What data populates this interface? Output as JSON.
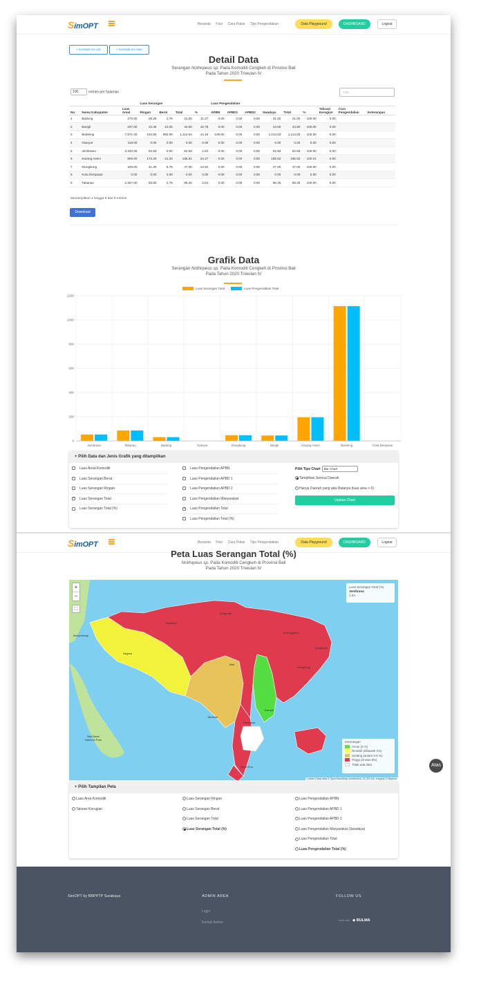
{
  "nav": {
    "logo_initial": "S",
    "logo_rest": "imOPT",
    "links": [
      "Beranda",
      "Fitur",
      "Cara Pakai",
      "Tips Pengendalian"
    ],
    "playground": "Data Playground",
    "dashboard": "DASHBOARD",
    "logout": "Logout"
  },
  "detail": {
    "back_list": "« Kembali Ke List",
    "back_isian": "« Kembali Ke Isian",
    "title": "Detail Data",
    "subtitle_pre": "Serangan ",
    "subtitle_pest": "Nothopeus sp.",
    "subtitle_post": " Pada Komoditi Cengkeh di Provinsi Bali",
    "subtitle_line2": "Pada Tahun 2020 Triwulan IV",
    "entries_value": "100",
    "entries_label": "entries per halaman",
    "search_placeholder": "Cari...",
    "group_serangan": "Luas Serangan",
    "group_pengendalian": "Luas Pengendalian",
    "headers": [
      "No.",
      "Nama Kabupaten",
      "Luas Areal",
      "Ringan",
      "Berat",
      "Total",
      "%",
      "APBN",
      "APBD1",
      "APBD2",
      "Swadaya",
      "Total",
      "%",
      "Taksasi Kerugian",
      "Cara Pengendalian",
      "Keterangan"
    ],
    "rows": [
      [
        "1",
        "Badung",
        "275.00",
        "28.25",
        "2.75",
        "31.00",
        "11.27",
        "0.00",
        "0.00",
        "0.00",
        "31.00",
        "31.00",
        "100.00",
        "0.00",
        "",
        ""
      ],
      [
        "2",
        "Bangli",
        "237.00",
        "34.45",
        "10.05",
        "44.50",
        "18.78",
        "0.00",
        "0.00",
        "0.00",
        "44.50",
        "44.50",
        "100.00",
        "0.00",
        "",
        ""
      ],
      [
        "3",
        "Buleleng",
        "7,871.00",
        "164.55",
        "950.09",
        "1,114.64",
        "14.16",
        "100.00",
        "0.00",
        "0.00",
        "1,014.63",
        "1,114.63",
        "100.00",
        "0.00",
        "",
        ""
      ],
      [
        "4",
        "Gianyar",
        "119.00",
        "0.00",
        "0.00",
        "0.00",
        "0.00",
        "0.00",
        "0.00",
        "0.00",
        "0.00",
        "0.00",
        "0.00",
        "0.00",
        "",
        ""
      ],
      [
        "5",
        "Jembrana",
        "3,420.00",
        "52.83",
        "0.00",
        "52.83",
        "1.54",
        "0.00",
        "0.00",
        "0.00",
        "52.83",
        "52.83",
        "100.00",
        "0.00",
        "",
        ""
      ],
      [
        "6",
        "Karang Asem",
        "806.00",
        "174.28",
        "21.33",
        "195.61",
        "24.27",
        "0.00",
        "0.00",
        "0.00",
        "195.62",
        "195.62",
        "100.01",
        "0.00",
        "",
        ""
      ],
      [
        "7",
        "Klungkung",
        "345.00",
        "41.25",
        "5.75",
        "47.00",
        "13.62",
        "0.00",
        "0.00",
        "0.00",
        "47.00",
        "47.00",
        "100.00",
        "0.00",
        "",
        ""
      ],
      [
        "8",
        "Kota Denpasar",
        "0.00",
        "0.00",
        "0.00",
        "0.00",
        "0.00",
        "0.00",
        "0.00",
        "0.00",
        "0.00",
        "0.00",
        "0.00",
        "0.00",
        "",
        ""
      ],
      [
        "9",
        "Tabanan",
        "2,367.00",
        "83.50",
        "2.75",
        "86.25",
        "3.64",
        "0.00",
        "0.00",
        "0.00",
        "86.25",
        "86.25",
        "100.00",
        "0.00",
        "",
        ""
      ]
    ],
    "info": "Menampilkan 1 hingga 9 dari 9 entries",
    "download": "Download"
  },
  "grafik": {
    "title": "Grafik Data",
    "subtitle_pre": "Serangan ",
    "subtitle_pest": "Nothopeus sp.",
    "subtitle_post": " Pada Komoditi Cengkeh di Provinsi Bali",
    "subtitle_line2": "Pada Tahun 2020 Triwulan IV"
  },
  "chart_data": {
    "type": "bar",
    "categories": [
      "Jembrana",
      "Tabanan",
      "Badung",
      "Gianyar",
      "Klungkung",
      "Bangli",
      "Karang Asem",
      "Buleleng",
      "Kota Denpasar"
    ],
    "series": [
      {
        "name": "Luas Serangan Total",
        "color": "#ffa500",
        "values": [
          52.83,
          86.25,
          31.0,
          0.0,
          47.0,
          44.5,
          195.61,
          1114.64,
          0.0
        ]
      },
      {
        "name": "Luas Pengendalian Total",
        "color": "#00bfff",
        "values": [
          52.83,
          86.25,
          31.0,
          0.0,
          47.0,
          44.5,
          195.62,
          1114.63,
          0.0
        ]
      }
    ],
    "ylim": [
      0,
      1200
    ],
    "yticks": [
      "0",
      "200",
      "400",
      "600",
      "800",
      "1000",
      "1200"
    ],
    "grid": true,
    "legend": "top-center"
  },
  "chart_panel": {
    "title": "+ Pilih Data dan Jenis Grafik yang ditampilkan",
    "col1": [
      {
        "label": "Luas Areal Komoditi",
        "checked": false
      },
      {
        "label": "Luas Serangan Berat",
        "checked": false
      },
      {
        "label": "Luas Serangan Ringan",
        "checked": false
      },
      {
        "label": "Luas Serangan Total",
        "checked": true
      },
      {
        "label": "Luas Serangan Total (%)",
        "checked": false
      }
    ],
    "col2": [
      {
        "label": "Luas Pengendalian APBN",
        "checked": false
      },
      {
        "label": "Luas Pengendalian APBD 1",
        "checked": false
      },
      {
        "label": "Luas Pengendalian APBD 2",
        "checked": false
      },
      {
        "label": "Luas Pengendalian Masyarakat",
        "checked": false
      },
      {
        "label": "Luas Pengendalian Total",
        "checked": true
      },
      {
        "label": "Luas Pengendalian Total (%)",
        "checked": false
      }
    ],
    "tipe_label": "Pilih Tipe Chart",
    "tipe_value": "Bar Chart",
    "radio_all": "Tampilkan Semua Daerah",
    "radio_some": "Hanya Daerah yang ada Datanya (luas area > 0)",
    "update": "Update Chart"
  },
  "peta": {
    "title": "Peta Luas Serangan Total (%)",
    "subtitle_pest": "Nothopeus sp.",
    "subtitle_post": " Pada Komoditi Cengkeh di Provinsi Bali",
    "subtitle_line2": "Pada Tahun 2020 Triwulan IV",
    "zoom_in": "+",
    "zoom_out": "−",
    "fullscreen": "⛶",
    "info_title": "Luas Serangan Total (%)",
    "info_region": "Jembrana",
    "info_value": "1.54",
    "legend_title": "Keterangan",
    "legend_items": [
      {
        "label": "Aman (0 %)",
        "color": "#66dd44"
      },
      {
        "label": "Rendah (dibawah 2%)",
        "color": "#ffff55"
      },
      {
        "label": "Sedang (antara 2-5 %)",
        "color": "#e8c35a"
      },
      {
        "label": "Tinggi (di atas 8%)",
        "color": "#e03a4e"
      },
      {
        "label": "Tidak ada data",
        "color": "#ffffff"
      }
    ],
    "attribution": "Leaflet | Map data © OpenStreetMap contributors, CC-BY-SA, Imagery © Mapbox",
    "places": [
      "Negara",
      "Tabanan",
      "Bali",
      "Gianyar",
      "Denpasar",
      "Karangasem",
      "Klungkung",
      "Singaraja",
      "Buleleng",
      "Amlapura",
      "Bali Barat National Park",
      "Banyuwangi",
      "Nusa Dua"
    ]
  },
  "map_panel": {
    "title": "+ Pilih Tampilan Peta",
    "col1": [
      "Luas Area Komoditi",
      "Taksasi Kerugian"
    ],
    "col2": [
      "Luas Serangan Ringan",
      "Luas Serangan Berat",
      "Luas Serangan Total",
      "Luas Serangan Total (%)"
    ],
    "col3": [
      "Luas Pengendalian APBN",
      "Luas Pengendalian APBD 1",
      "Luas Pengendalian APBD 2",
      "Luas Pengendalian Masyarakat (Swadaya)",
      "Luas Pengendalian Total",
      "Luas Pengendalian Total (%)"
    ],
    "selected": "Luas Serangan Total (%)"
  },
  "atas": "Atas",
  "footer": {
    "brand": "SimOPT by BBPPTP Surabaya",
    "admin_title": "ADMIN AREA",
    "admin_links": [
      "Login",
      "Kontak Admin"
    ],
    "follow_title": "FOLLOW US",
    "made_with": "Made with",
    "bulma": "BULMA"
  }
}
